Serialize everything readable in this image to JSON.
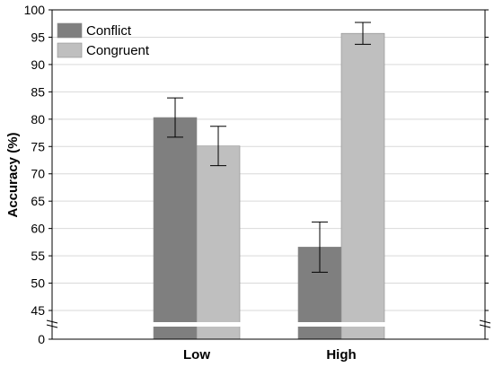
{
  "chart_data": {
    "type": "bar",
    "categories": [
      "Low",
      "High"
    ],
    "series": [
      {
        "name": "Conflict",
        "values": [
          80.3,
          56.6
        ],
        "error": [
          3.6,
          4.6
        ],
        "color": "#7f7f7f"
      },
      {
        "name": "Congruent",
        "values": [
          75.1,
          95.7
        ],
        "error": [
          3.6,
          2.0
        ],
        "color": "#bfbfbf"
      }
    ],
    "xlabel": "",
    "ylabel": "Accuracy (%)",
    "ylim": [
      40,
      100
    ],
    "yticks": [
      "0",
      "45",
      "50",
      "55",
      "60",
      "65",
      "70",
      "75",
      "80",
      "85",
      "90",
      "95",
      "100"
    ],
    "axis_break": "between 0 and 45",
    "grid": true,
    "legend": "top-left"
  }
}
